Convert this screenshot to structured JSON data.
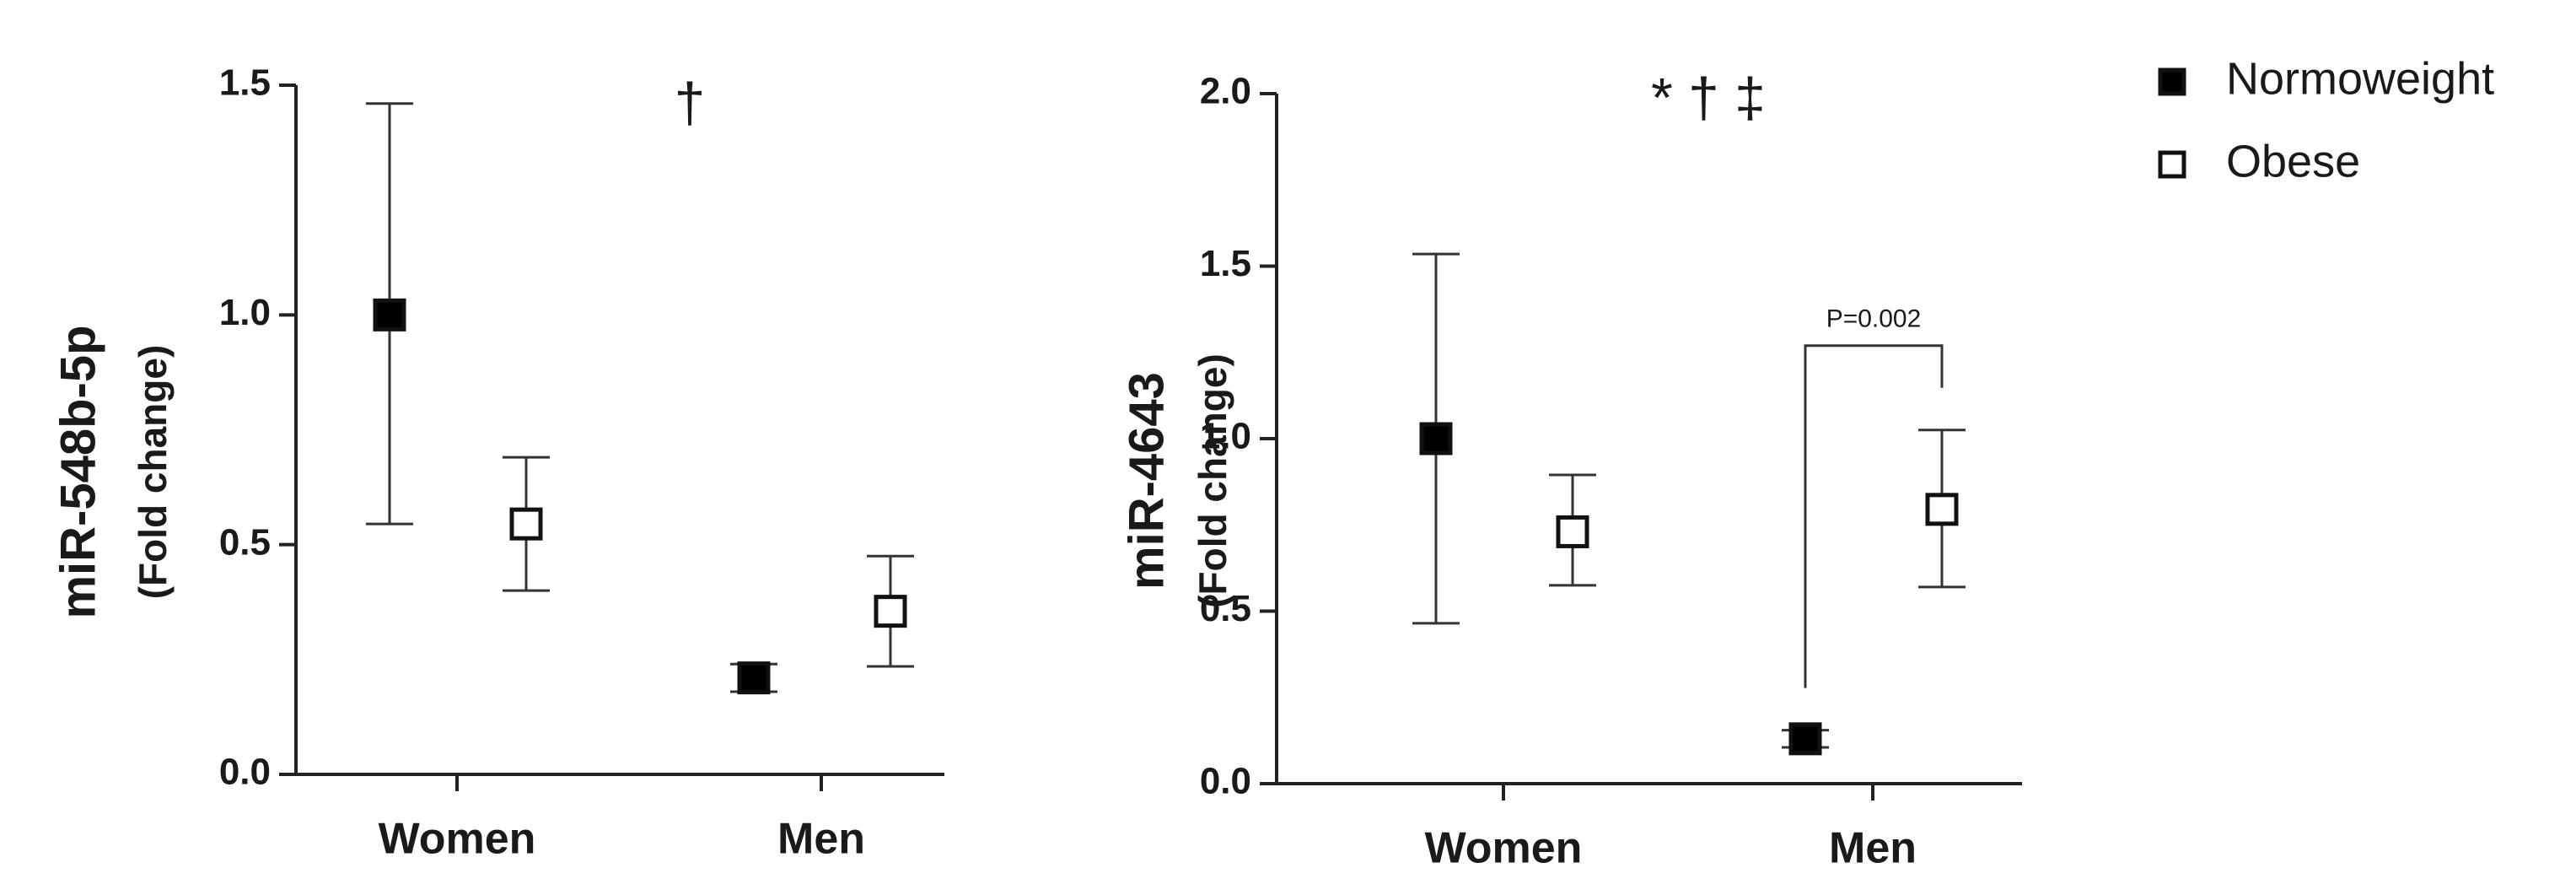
{
  "chart_data": [
    {
      "type": "dotplot",
      "ylabel": "miR-548b-5p",
      "ylabel_sub": "(Fold change)",
      "annotation": "†",
      "categories": [
        "Women",
        "Men"
      ],
      "ylim": [
        0,
        1.5
      ],
      "yticks": [
        {
          "value": 0,
          "label": "0.0"
        },
        {
          "value": 0.5,
          "label": "0.5"
        },
        {
          "value": 1,
          "label": "1.0"
        },
        {
          "value": 1.5,
          "label": "1.5"
        }
      ],
      "series": [
        {
          "fill": "#000000",
          "values": [
            1.0,
            0.21
          ],
          "lower": [
            0.545,
            0.18
          ],
          "upper": [
            1.46,
            0.24
          ]
        },
        {
          "fill": "#ffffff",
          "values": [
            0.545,
            0.355
          ],
          "lower": [
            0.4,
            0.235
          ],
          "upper": [
            0.69,
            0.475
          ]
        }
      ]
    },
    {
      "type": "dotplot",
      "ylabel": "miR-4643",
      "ylabel_sub": "(Fold change)",
      "annotation": "* † ‡",
      "categories": [
        "Women",
        "Men"
      ],
      "ylim": [
        0,
        2
      ],
      "yticks": [
        {
          "value": 0,
          "label": "0.0"
        },
        {
          "value": 0.5,
          "label": "0.5"
        },
        {
          "value": 1,
          "label": "1.0"
        },
        {
          "value": 1.5,
          "label": "1.5"
        },
        {
          "value": 2,
          "label": "2.0"
        }
      ],
      "series": [
        {
          "fill": "#000000",
          "values": [
            1.0,
            0.13
          ],
          "lower": [
            0.465,
            0.105
          ],
          "upper": [
            1.535,
            0.155
          ]
        },
        {
          "fill": "#ffffff",
          "values": [
            0.73,
            0.795
          ],
          "lower": [
            0.575,
            0.57
          ],
          "upper": [
            0.895,
            1.025
          ]
        }
      ],
      "bracket": {
        "category": 1,
        "label": "P=0.002"
      }
    }
  ],
  "legend": [
    {
      "label": "Normoweight",
      "fill": "#000000"
    },
    {
      "label": "Obese",
      "fill": "#ffffff"
    }
  ]
}
